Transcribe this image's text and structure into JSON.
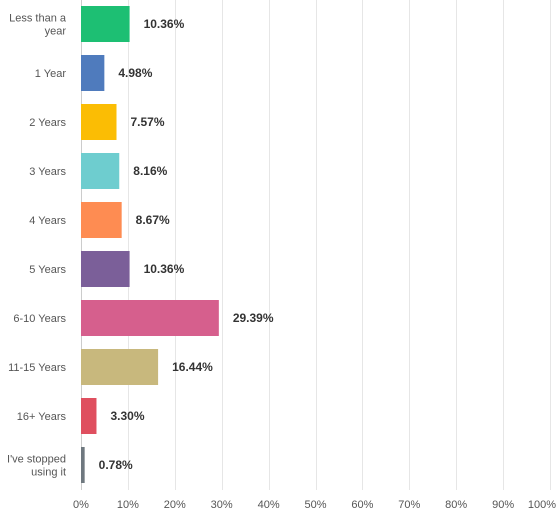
{
  "chart_data": {
    "type": "bar",
    "orientation": "horizontal",
    "categories": [
      [
        "Less than a",
        "year"
      ],
      [
        "1 Year"
      ],
      [
        "2 Years"
      ],
      [
        "3 Years"
      ],
      [
        "4 Years"
      ],
      [
        "5 Years"
      ],
      [
        "6-10 Years"
      ],
      [
        "11-15 Years"
      ],
      [
        "16+ Years"
      ],
      [
        "I've stopped",
        "using it"
      ]
    ],
    "values": [
      10.36,
      4.98,
      7.57,
      8.16,
      8.67,
      10.36,
      29.39,
      16.44,
      3.3,
      0.78
    ],
    "value_labels": [
      "10.36%",
      "4.98%",
      "7.57%",
      "8.16%",
      "8.67%",
      "10.36%",
      "29.39%",
      "16.44%",
      "3.30%",
      "0.78%"
    ],
    "colors": [
      "#1dbf73",
      "#4f7bbd",
      "#fbbd04",
      "#6ecdcf",
      "#fe8c52",
      "#7b5f99",
      "#d65f8d",
      "#c8b87d",
      "#df4f5f",
      "#6f787f"
    ],
    "xlim": [
      0,
      100
    ],
    "xticks": [
      "0%",
      "10%",
      "20%",
      "30%",
      "40%",
      "50%",
      "60%",
      "70%",
      "80%",
      "90%",
      "100%"
    ],
    "grid": true,
    "title": "",
    "xlabel": "",
    "ylabel": ""
  }
}
